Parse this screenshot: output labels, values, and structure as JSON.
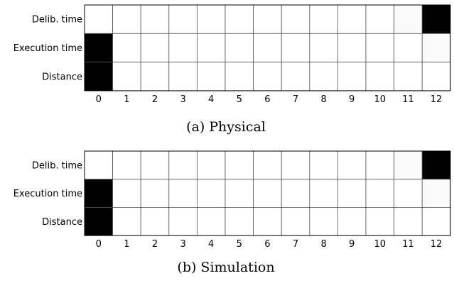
{
  "chart_data": [
    {
      "type": "heatmap",
      "caption": "(a) Physical",
      "row_labels": [
        "Delib. time",
        "Execution time",
        "Distance"
      ],
      "column_labels": [
        "0",
        "1",
        "2",
        "3",
        "4",
        "5",
        "6",
        "7",
        "8",
        "9",
        "10",
        "11",
        "12"
      ],
      "values": [
        [
          0.0,
          0.0,
          0.0,
          0.0,
          0.0,
          0.0,
          0.0,
          0.0,
          0.0,
          0.0,
          0.0,
          0.02,
          1.0
        ],
        [
          1.0,
          0.0,
          0.0,
          0.0,
          0.0,
          0.0,
          0.0,
          0.0,
          0.0,
          0.0,
          0.0,
          0.0,
          0.02
        ],
        [
          1.0,
          0.0,
          0.0,
          0.0,
          0.0,
          0.0,
          0.0,
          0.0,
          0.0,
          0.0,
          0.0,
          0.0,
          0.0
        ]
      ],
      "colormap": "white-to-black",
      "grid": true
    },
    {
      "type": "heatmap",
      "caption": "(b) Simulation",
      "row_labels": [
        "Delib. time",
        "Execution time",
        "Distance"
      ],
      "column_labels": [
        "0",
        "1",
        "2",
        "3",
        "4",
        "5",
        "6",
        "7",
        "8",
        "9",
        "10",
        "11",
        "12"
      ],
      "values": [
        [
          0.0,
          0.0,
          0.0,
          0.0,
          0.0,
          0.0,
          0.0,
          0.0,
          0.0,
          0.0,
          0.0,
          0.02,
          1.0
        ],
        [
          1.0,
          0.0,
          0.0,
          0.0,
          0.0,
          0.0,
          0.0,
          0.0,
          0.0,
          0.0,
          0.0,
          0.0,
          0.02
        ],
        [
          1.0,
          0.0,
          0.0,
          0.0,
          0.0,
          0.0,
          0.0,
          0.0,
          0.0,
          0.0,
          0.0,
          0.0,
          0.0
        ]
      ],
      "colormap": "white-to-black",
      "grid": true
    }
  ]
}
